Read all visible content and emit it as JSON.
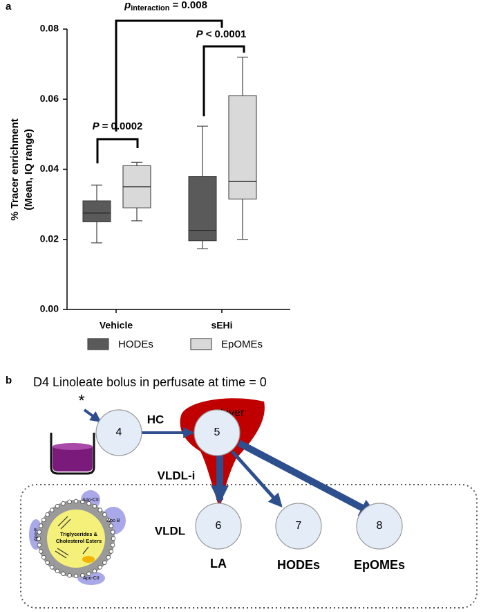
{
  "chart_data": {
    "type": "box",
    "panel_label": "a",
    "ylabel": [
      "% Tracer enrichment",
      "(Mean, IQ range)"
    ],
    "categories": [
      "Vehicle",
      "sEHi"
    ],
    "series": [
      {
        "name": "HODEs",
        "color": "#5a5a5a",
        "whisker_low": [
          0.019,
          0.0173
        ],
        "q1": [
          0.025,
          0.0196
        ],
        "median": [
          0.0275,
          0.0226
        ],
        "q3": [
          0.031,
          0.038
        ],
        "whisker_high": [
          0.0355,
          0.0523
        ]
      },
      {
        "name": "EpOMEs",
        "color": "#d9d9d9",
        "whisker_low": [
          0.0253,
          0.02
        ],
        "q1": [
          0.029,
          0.0315
        ],
        "median": [
          0.035,
          0.0365
        ],
        "q3": [
          0.041,
          0.061
        ],
        "whisker_high": [
          0.042,
          0.072
        ]
      }
    ],
    "ylim": [
      0,
      0.08
    ],
    "yticks": [
      {
        "value": 0,
        "label": "0.00"
      },
      {
        "value": 0.02,
        "label": "0.02"
      },
      {
        "value": 0.04,
        "label": "0.04"
      },
      {
        "value": 0.06,
        "label": "0.06"
      },
      {
        "value": 0.08,
        "label": "0.08"
      }
    ],
    "annotations": {
      "vehicle": {
        "symbol": "P",
        "text": "= 0.0002"
      },
      "sehi": {
        "symbol": "P",
        "text": "< 0.0001"
      },
      "interaction": {
        "symbol": "p",
        "subscript": "interaction",
        "text": "= 0.008"
      }
    }
  },
  "diagram": {
    "panel_label": "b",
    "title": "D4 Linoleate bolus in perfusate at time = 0",
    "asterisk": "*",
    "nodes": [
      "4",
      "5",
      "6",
      "7",
      "8"
    ],
    "labels": {
      "hc": "HC",
      "liver": "Liver",
      "vldl_i": "VLDL-i",
      "vldl": "VLDL",
      "la": "LA",
      "hodes": "HODEs",
      "epomes": "EpOMEs"
    },
    "lipoprotein": {
      "core": [
        "Triglycerides &",
        "Cholesterol Esters"
      ],
      "apo": [
        "Apo-CII",
        "Apo B",
        "Apo-E",
        "Apo-CII"
      ]
    }
  }
}
